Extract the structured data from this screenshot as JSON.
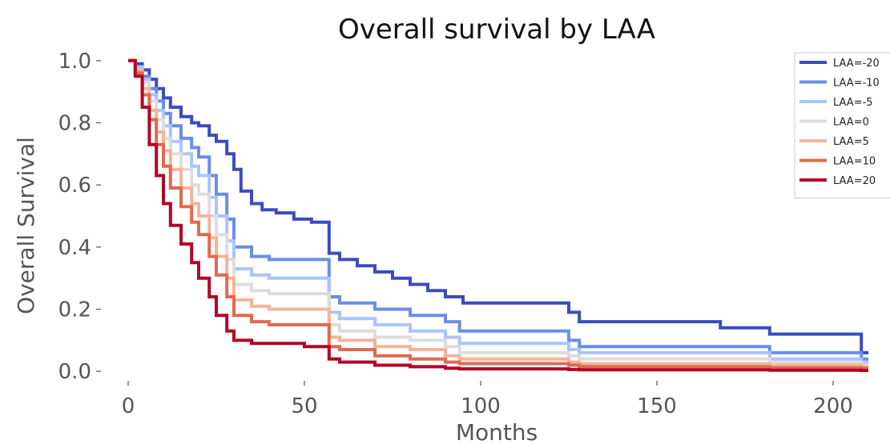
{
  "chart_data": {
    "type": "line",
    "title": "Overall survival by LAA",
    "xlabel": "Months",
    "ylabel": "Overall Survival",
    "xlim": [
      -5,
      210
    ],
    "ylim": [
      -0.02,
      1.02
    ],
    "xticks": [
      0,
      50,
      100,
      150,
      200
    ],
    "xtick_labels": [
      "0",
      "50",
      "100",
      "150",
      "200"
    ],
    "yticks": [
      0.0,
      0.2,
      0.4,
      0.6,
      0.8,
      1.0
    ],
    "ytick_labels": [
      "0.0",
      "0.2",
      "0.4",
      "0.6",
      "0.8",
      "1.0"
    ],
    "grid": false,
    "legend_position": "top-right",
    "step": true,
    "series": [
      {
        "name": "LAA=-20",
        "color": "#3a4cc0",
        "x": [
          0,
          2,
          4,
          6,
          8,
          10,
          12,
          15,
          18,
          20,
          23,
          25,
          28,
          30,
          32,
          35,
          38,
          42,
          47,
          52,
          57,
          60,
          65,
          70,
          75,
          80,
          85,
          90,
          95,
          100,
          110,
          125,
          128,
          140,
          150,
          160,
          168,
          175,
          182,
          190,
          200,
          208
        ],
        "y": [
          1.0,
          0.99,
          0.97,
          0.94,
          0.91,
          0.88,
          0.85,
          0.82,
          0.8,
          0.79,
          0.76,
          0.74,
          0.7,
          0.65,
          0.58,
          0.54,
          0.52,
          0.51,
          0.49,
          0.48,
          0.38,
          0.36,
          0.34,
          0.32,
          0.3,
          0.28,
          0.26,
          0.24,
          0.22,
          0.22,
          0.22,
          0.19,
          0.16,
          0.16,
          0.16,
          0.16,
          0.14,
          0.14,
          0.12,
          0.12,
          0.12,
          0.06
        ]
      },
      {
        "name": "LAA=-10",
        "color": "#6a8ee8",
        "x": [
          0,
          2,
          4,
          6,
          8,
          10,
          12,
          15,
          18,
          20,
          23,
          25,
          28,
          30,
          35,
          40,
          50,
          57,
          60,
          70,
          80,
          90,
          94,
          100,
          125,
          128,
          150,
          168,
          182,
          200,
          208
        ],
        "y": [
          1.0,
          0.98,
          0.95,
          0.91,
          0.87,
          0.83,
          0.79,
          0.75,
          0.72,
          0.69,
          0.63,
          0.57,
          0.49,
          0.4,
          0.37,
          0.36,
          0.36,
          0.24,
          0.22,
          0.2,
          0.18,
          0.16,
          0.13,
          0.13,
          0.1,
          0.08,
          0.08,
          0.08,
          0.06,
          0.06,
          0.04
        ]
      },
      {
        "name": "LAA=-5",
        "color": "#a9c5fc",
        "x": [
          0,
          2,
          4,
          6,
          8,
          10,
          12,
          15,
          18,
          20,
          23,
          25,
          28,
          30,
          35,
          40,
          50,
          57,
          60,
          70,
          80,
          90,
          94,
          100,
          125,
          128,
          150,
          168,
          182,
          200,
          208
        ],
        "y": [
          1.0,
          0.98,
          0.94,
          0.89,
          0.84,
          0.79,
          0.74,
          0.7,
          0.66,
          0.63,
          0.56,
          0.5,
          0.42,
          0.33,
          0.31,
          0.3,
          0.3,
          0.19,
          0.17,
          0.15,
          0.13,
          0.11,
          0.09,
          0.09,
          0.07,
          0.06,
          0.06,
          0.06,
          0.04,
          0.04,
          0.03
        ]
      },
      {
        "name": "LAA=0",
        "color": "#dddddd",
        "x": [
          0,
          2,
          4,
          6,
          8,
          10,
          12,
          15,
          18,
          20,
          23,
          25,
          28,
          30,
          35,
          40,
          50,
          57,
          60,
          70,
          80,
          90,
          94,
          100,
          125,
          128,
          150,
          168,
          182,
          200,
          208
        ],
        "y": [
          1.0,
          0.97,
          0.93,
          0.87,
          0.81,
          0.75,
          0.7,
          0.65,
          0.6,
          0.57,
          0.5,
          0.44,
          0.36,
          0.28,
          0.26,
          0.25,
          0.25,
          0.15,
          0.13,
          0.11,
          0.1,
          0.08,
          0.06,
          0.06,
          0.05,
          0.04,
          0.04,
          0.04,
          0.03,
          0.03,
          0.02
        ]
      },
      {
        "name": "LAA=5",
        "color": "#f4b49a",
        "x": [
          0,
          2,
          4,
          6,
          8,
          10,
          12,
          15,
          18,
          20,
          23,
          25,
          28,
          30,
          35,
          40,
          50,
          57,
          60,
          70,
          80,
          90,
          94,
          100,
          125,
          128,
          150,
          168,
          182,
          200,
          208
        ],
        "y": [
          1.0,
          0.97,
          0.91,
          0.84,
          0.77,
          0.71,
          0.65,
          0.59,
          0.54,
          0.5,
          0.43,
          0.37,
          0.3,
          0.23,
          0.21,
          0.2,
          0.2,
          0.11,
          0.1,
          0.08,
          0.07,
          0.05,
          0.04,
          0.04,
          0.03,
          0.025,
          0.025,
          0.025,
          0.02,
          0.02,
          0.015
        ]
      },
      {
        "name": "LAA=10",
        "color": "#e06a50",
        "x": [
          0,
          2,
          4,
          6,
          8,
          10,
          12,
          15,
          18,
          20,
          23,
          25,
          28,
          30,
          35,
          40,
          50,
          57,
          60,
          70,
          80,
          90,
          94,
          100,
          125,
          128,
          150,
          168,
          182,
          200,
          208
        ],
        "y": [
          1.0,
          0.96,
          0.89,
          0.81,
          0.73,
          0.66,
          0.59,
          0.53,
          0.48,
          0.44,
          0.37,
          0.31,
          0.24,
          0.18,
          0.16,
          0.15,
          0.15,
          0.08,
          0.07,
          0.05,
          0.04,
          0.03,
          0.025,
          0.025,
          0.02,
          0.015,
          0.015,
          0.015,
          0.012,
          0.012,
          0.01
        ]
      },
      {
        "name": "LAA=20",
        "color": "#b40426",
        "x": [
          0,
          2,
          4,
          6,
          8,
          10,
          12,
          15,
          18,
          20,
          23,
          25,
          28,
          30,
          35,
          40,
          50,
          57,
          60,
          70,
          80,
          90,
          94,
          100,
          125,
          128,
          150,
          168,
          182,
          200,
          208
        ],
        "y": [
          1.0,
          0.95,
          0.85,
          0.73,
          0.63,
          0.54,
          0.47,
          0.41,
          0.35,
          0.3,
          0.24,
          0.18,
          0.13,
          0.1,
          0.09,
          0.09,
          0.08,
          0.04,
          0.03,
          0.02,
          0.015,
          0.01,
          0.008,
          0.008,
          0.006,
          0.005,
          0.005,
          0.005,
          0.004,
          0.004,
          0.003
        ]
      }
    ]
  }
}
